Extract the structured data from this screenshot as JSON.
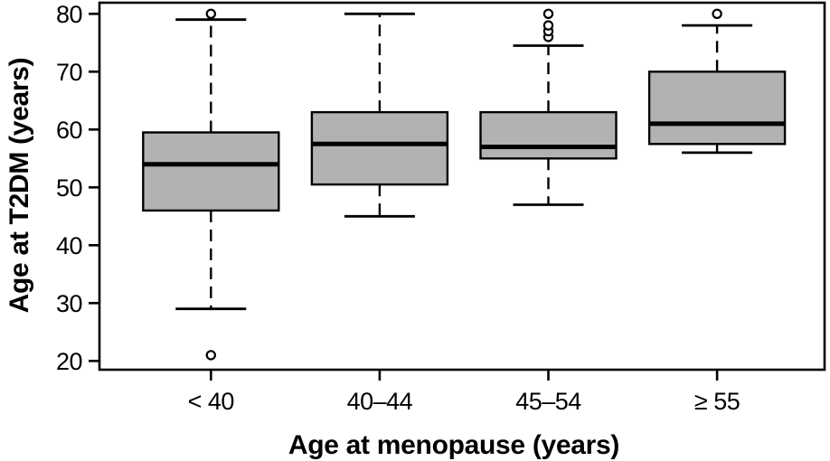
{
  "chart_data": {
    "type": "boxplot",
    "title": "",
    "xlabel": "Age at menopause (years)",
    "ylabel": "Age at T2DM (years)",
    "categories": [
      "< 40",
      "40–44",
      "45–54",
      "≥ 55"
    ],
    "series": [
      {
        "category": "< 40",
        "whisker_low": 29,
        "q1": 46,
        "median": 54,
        "q3": 59.5,
        "whisker_high": 79,
        "outliers": [
          21,
          80
        ]
      },
      {
        "category": "40–44",
        "whisker_low": 45,
        "q1": 50.5,
        "median": 57.5,
        "q3": 63,
        "whisker_high": 80,
        "outliers": []
      },
      {
        "category": "45–54",
        "whisker_low": 47,
        "q1": 55,
        "median": 57,
        "q3": 63,
        "whisker_high": 74.5,
        "outliers": [
          76,
          77,
          78,
          80
        ]
      },
      {
        "category": "≥ 55",
        "whisker_low": 56,
        "q1": 57.5,
        "median": 61,
        "q3": 70,
        "whisker_high": 78,
        "outliers": [
          80
        ]
      }
    ],
    "yticks": [
      20,
      30,
      40,
      50,
      60,
      70,
      80
    ],
    "ylim": [
      18.5,
      82
    ],
    "grid": false,
    "legend": "none",
    "colors": {
      "box_fill": "#b2b2b2",
      "line": "#000000",
      "outlier_fill": "#ffffff",
      "background": "#ffffff"
    }
  }
}
